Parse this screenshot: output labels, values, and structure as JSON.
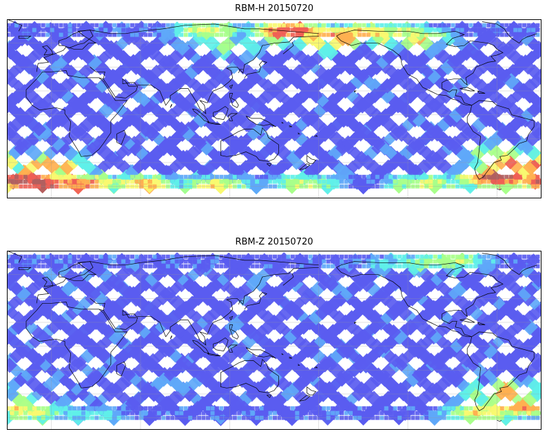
{
  "panels": [
    {
      "title": "RBM-H 20150720",
      "hot_spots": [
        {
          "lon": 105,
          "lat": 70,
          "level": 0.55
        },
        {
          "lon": 160,
          "lat": 70,
          "level": 0.9
        },
        {
          "lon": 190,
          "lat": 65,
          "level": 0.8
        },
        {
          "lon": -150,
          "lat": 68,
          "level": 0.7
        },
        {
          "lon": -125,
          "lat": 68,
          "level": 0.55
        },
        {
          "lon": -115,
          "lat": 65,
          "level": 0.6
        },
        {
          "lon": 120,
          "lat": 58,
          "level": 0.4
        },
        {
          "lon": -175,
          "lat": 60,
          "level": 0.45
        },
        {
          "lon": 0,
          "lat": -42,
          "level": 0.75
        },
        {
          "lon": -15,
          "lat": -52,
          "level": 0.85
        },
        {
          "lon": 20,
          "lat": -58,
          "level": 0.8
        },
        {
          "lon": 60,
          "lat": -58,
          "level": 0.65
        },
        {
          "lon": 110,
          "lat": -60,
          "level": 0.6
        },
        {
          "lon": 170,
          "lat": -58,
          "level": 0.5
        },
        {
          "lon": -60,
          "lat": -52,
          "level": 0.95
        },
        {
          "lon": -45,
          "lat": -40,
          "level": 0.85
        },
        {
          "lon": -25,
          "lat": -55,
          "level": 0.95
        },
        {
          "lon": -5,
          "lat": -58,
          "level": 0.95
        },
        {
          "lon": -110,
          "lat": -58,
          "level": 0.55
        },
        {
          "lon": -60,
          "lat": -30,
          "level": 0.45
        }
      ],
      "noise_seed": 17
    },
    {
      "title": "RBM-Z 20150720",
      "hot_spots": [
        {
          "lon": -110,
          "lat": 70,
          "level": 0.4
        },
        {
          "lon": -90,
          "lat": 72,
          "level": 0.5
        },
        {
          "lon": -130,
          "lat": 68,
          "level": 0.3
        },
        {
          "lon": 0,
          "lat": -55,
          "level": 0.35
        },
        {
          "lon": 30,
          "lat": -58,
          "level": 0.3
        },
        {
          "lon": -55,
          "lat": -38,
          "level": 0.7
        },
        {
          "lon": -45,
          "lat": -50,
          "level": 0.75
        },
        {
          "lon": -30,
          "lat": -50,
          "level": 0.65
        },
        {
          "lon": -15,
          "lat": -55,
          "level": 0.55
        },
        {
          "lon": -70,
          "lat": -55,
          "level": 0.6
        },
        {
          "lon": 80,
          "lat": -30,
          "level": 0.2
        },
        {
          "lon": 140,
          "lat": 55,
          "level": 0.2
        }
      ],
      "noise_seed": 41
    }
  ],
  "colormap": [
    "#5a5cf0",
    "#5fa8f8",
    "#5ff0e8",
    "#a8ff8a",
    "#f8f870",
    "#ffb050",
    "#f06055",
    "#b06060"
  ],
  "map_view": {
    "central_longitude": 150,
    "lat_range": [
      -70,
      80
    ],
    "data_lat_range": [
      -60,
      75
    ]
  }
}
